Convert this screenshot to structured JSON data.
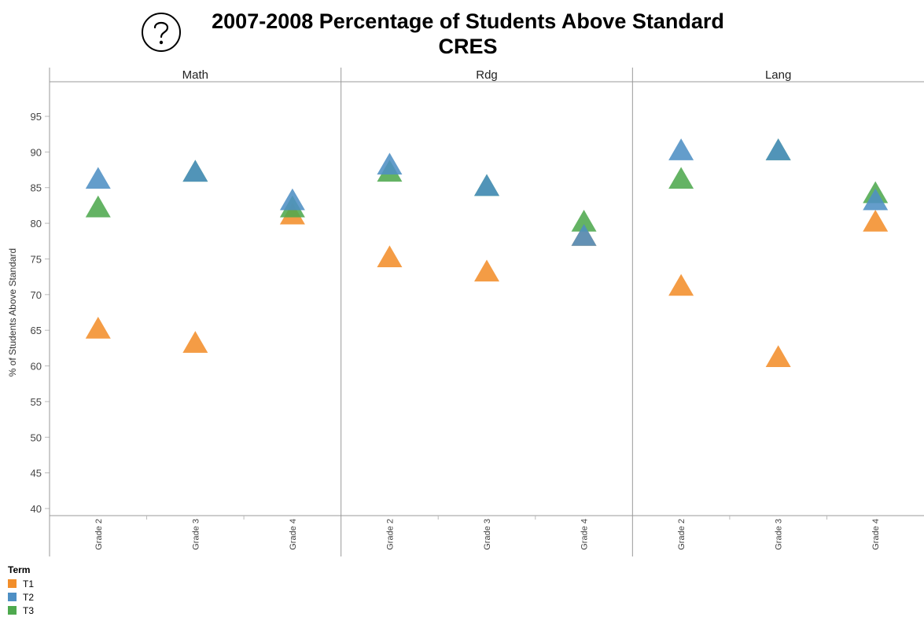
{
  "title": {
    "line1": "2007-2008 Percentage of Students Above Standard",
    "line2": "CRES"
  },
  "help_icon": "question-mark-circle-icon",
  "chart_data": {
    "type": "scatter",
    "marker": "triangle",
    "ylabel": "% of Students Above Standard",
    "ylim": [
      39,
      100
    ],
    "yticks": [
      40,
      45,
      50,
      55,
      60,
      65,
      70,
      75,
      80,
      85,
      90,
      95
    ],
    "panels": [
      "Math",
      "Rdg",
      "Lang"
    ],
    "categories": [
      "Grade 2",
      "Grade 3",
      "Grade 4"
    ],
    "series": [
      {
        "name": "T1",
        "color": "#f28e2b",
        "values": {
          "Math": [
            65,
            63,
            81
          ],
          "Rdg": [
            75,
            73,
            78
          ],
          "Lang": [
            71,
            61,
            80
          ]
        }
      },
      {
        "name": "T2",
        "color": "#4e8fc4",
        "values": {
          "Math": [
            86,
            87,
            83
          ],
          "Rdg": [
            88,
            85,
            78
          ],
          "Lang": [
            90,
            90,
            83
          ]
        }
      },
      {
        "name": "T3",
        "color": "#4ea94e",
        "values": {
          "Math": [
            82,
            87,
            82
          ],
          "Rdg": [
            87,
            85,
            80
          ],
          "Lang": [
            86,
            90,
            84
          ]
        }
      }
    ],
    "legend": {
      "title": "Term",
      "position": "bottom-left"
    },
    "grid": false
  }
}
